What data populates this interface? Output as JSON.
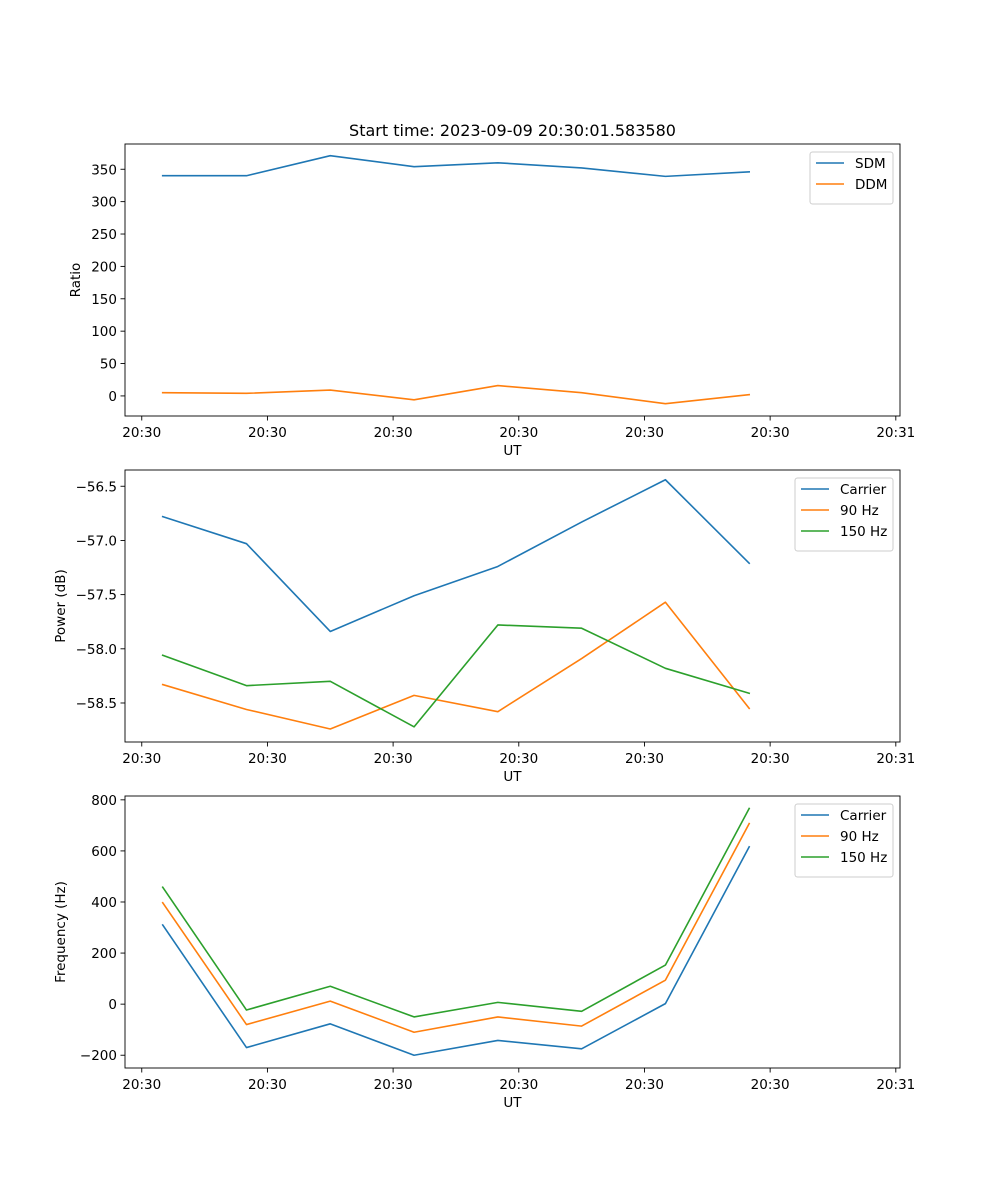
{
  "figure_title": "Start time: 2023-09-09 20:30:01.583580",
  "colors": {
    "blue": "#1f77b4",
    "orange": "#ff7f0e",
    "green": "#2ca02c"
  },
  "chart_data": [
    {
      "type": "line",
      "title": "Start time: 2023-09-09 20:30:01.583580",
      "xlabel": "UT",
      "ylabel": "Ratio",
      "xlim": [
        -0.45,
        8.8
      ],
      "x_ticks": [
        -0.25,
        1.25,
        2.75,
        4.25,
        5.75,
        7.25,
        8.75
      ],
      "x_tick_labels": [
        "20:30",
        "20:30",
        "20:30",
        "20:30",
        "20:30",
        "20:30",
        "20:31"
      ],
      "ylim": [
        -31,
        389
      ],
      "y_ticks": [
        0,
        50,
        100,
        150,
        200,
        250,
        300,
        350
      ],
      "y_tick_labels": [
        "0",
        "50",
        "100",
        "150",
        "200",
        "250",
        "300",
        "350"
      ],
      "x": [
        0,
        1,
        2,
        3,
        4,
        5,
        6,
        7
      ],
      "legend_position": "top-right",
      "series": [
        {
          "name": "SDM",
          "color": "#1f77b4",
          "values": [
            340,
            340,
            371,
            354,
            360,
            352,
            339,
            346
          ]
        },
        {
          "name": "DDM",
          "color": "#ff7f0e",
          "values": [
            5,
            4,
            9,
            -6,
            16,
            5,
            -12,
            2
          ]
        }
      ]
    },
    {
      "type": "line",
      "title": "",
      "xlabel": "UT",
      "ylabel": "Power (dB)",
      "xlim": [
        -0.45,
        8.8
      ],
      "x_ticks": [
        -0.25,
        1.25,
        2.75,
        4.25,
        5.75,
        7.25,
        8.75
      ],
      "x_tick_labels": [
        "20:30",
        "20:30",
        "20:30",
        "20:30",
        "20:30",
        "20:30",
        "20:31"
      ],
      "ylim": [
        -58.86,
        -56.35
      ],
      "y_ticks": [
        -58.5,
        -58.0,
        -57.5,
        -57.0,
        -56.5
      ],
      "y_tick_labels": [
        "−58.5",
        "−58.0",
        "−57.5",
        "−57.0",
        "−56.5"
      ],
      "x": [
        0,
        1,
        2,
        3,
        4,
        5,
        6,
        7
      ],
      "legend_position": "top-right",
      "series": [
        {
          "name": "Carrier",
          "color": "#1f77b4",
          "values": [
            -56.78,
            -57.03,
            -57.84,
            -57.51,
            -57.24,
            -56.83,
            -56.44,
            -57.21
          ]
        },
        {
          "name": "90 Hz",
          "color": "#ff7f0e",
          "values": [
            -58.33,
            -58.56,
            -58.74,
            -58.43,
            -58.58,
            -58.09,
            -57.57,
            -58.55
          ]
        },
        {
          "name": "150 Hz",
          "color": "#2ca02c",
          "values": [
            -58.06,
            -58.34,
            -58.3,
            -58.72,
            -57.78,
            -57.81,
            -58.18,
            -58.41
          ]
        }
      ]
    },
    {
      "type": "line",
      "title": "",
      "xlabel": "UT",
      "ylabel": "Frequency (Hz)",
      "xlim": [
        -0.45,
        8.8
      ],
      "x_ticks": [
        -0.25,
        1.25,
        2.75,
        4.25,
        5.75,
        7.25,
        8.75
      ],
      "x_tick_labels": [
        "20:30",
        "20:30",
        "20:30",
        "20:30",
        "20:30",
        "20:30",
        "20:31"
      ],
      "ylim": [
        -250,
        815
      ],
      "y_ticks": [
        -200,
        0,
        200,
        400,
        600,
        800
      ],
      "y_tick_labels": [
        "−200",
        "0",
        "200",
        "400",
        "600",
        "800"
      ],
      "x": [
        0,
        1,
        2,
        3,
        4,
        5,
        6,
        7
      ],
      "legend_position": "top-right",
      "series": [
        {
          "name": "Carrier",
          "color": "#1f77b4",
          "values": [
            310,
            -170,
            -77,
            -200,
            -142,
            -175,
            2,
            616
          ]
        },
        {
          "name": "90 Hz",
          "color": "#ff7f0e",
          "values": [
            397,
            -80,
            12,
            -110,
            -50,
            -86,
            94,
            707
          ]
        },
        {
          "name": "150 Hz",
          "color": "#2ca02c",
          "values": [
            458,
            -23,
            70,
            -50,
            7,
            -28,
            153,
            766
          ]
        }
      ]
    }
  ]
}
